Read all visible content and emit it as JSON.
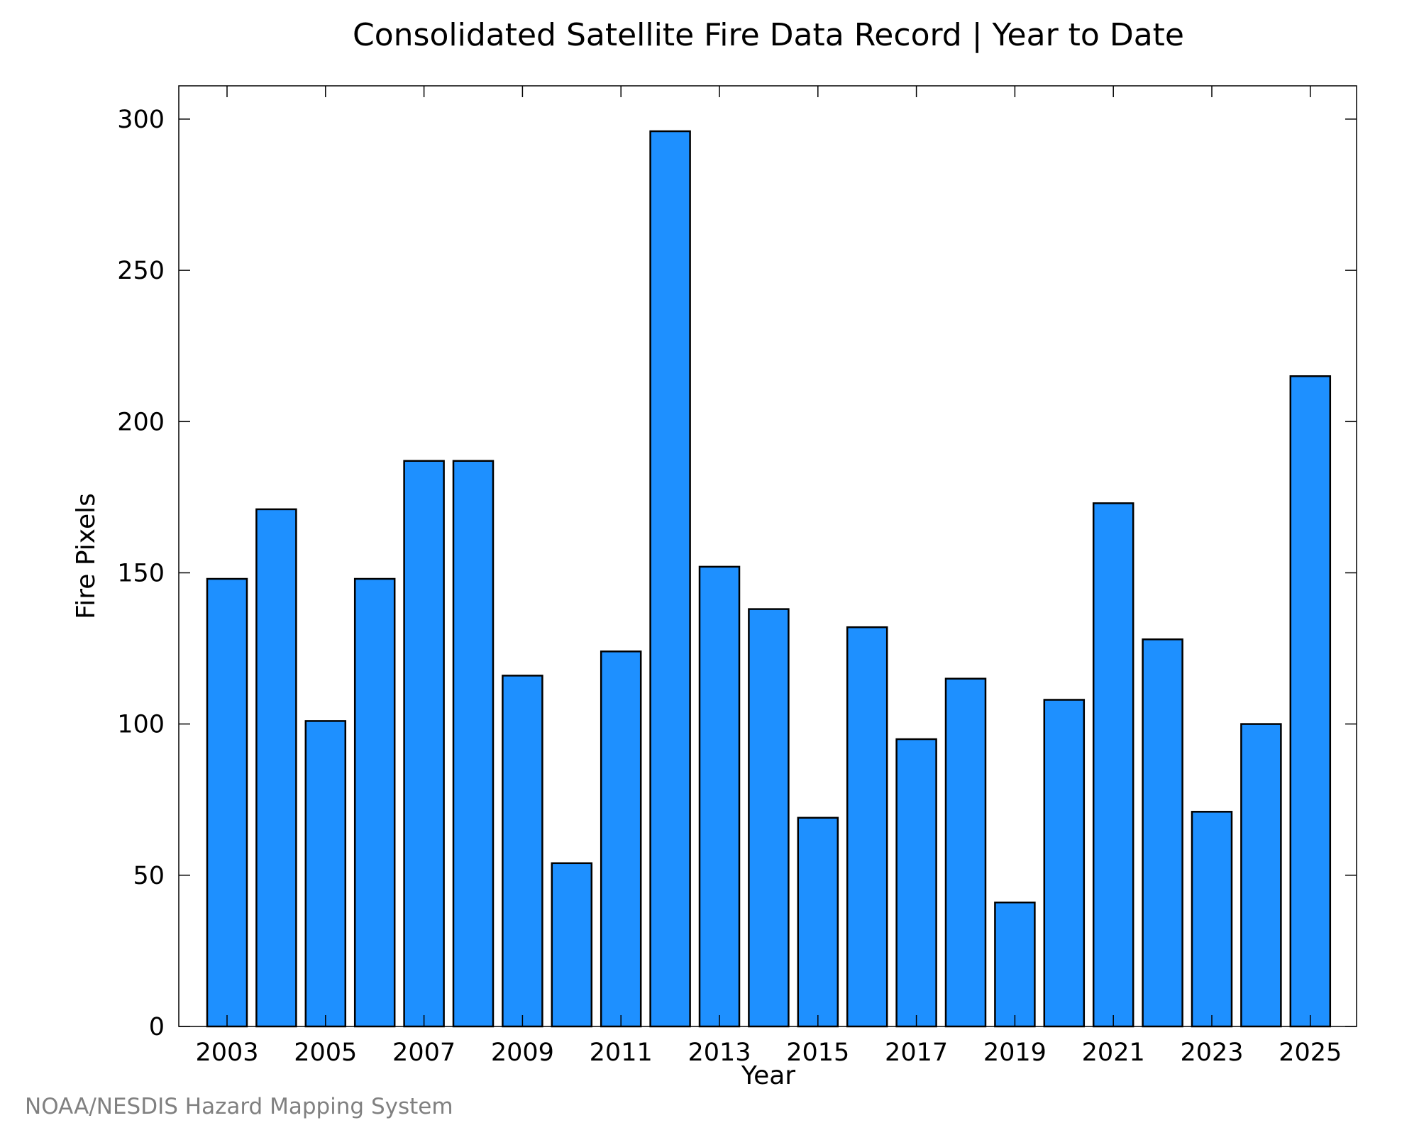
{
  "chart_data": {
    "type": "bar",
    "title": "Consolidated Satellite Fire Data Record | Year to Date",
    "xlabel": "Year",
    "ylabel": "Fire Pixels",
    "categories": [
      "2003",
      "2004",
      "2005",
      "2006",
      "2007",
      "2008",
      "2009",
      "2010",
      "2011",
      "2012",
      "2013",
      "2014",
      "2015",
      "2016",
      "2017",
      "2018",
      "2019",
      "2020",
      "2021",
      "2022",
      "2023",
      "2024",
      "2025"
    ],
    "values": [
      148,
      171,
      101,
      148,
      187,
      187,
      116,
      54,
      124,
      296,
      152,
      138,
      69,
      132,
      95,
      115,
      41,
      108,
      173,
      128,
      71,
      100,
      215
    ],
    "xtick_labels": [
      "2003",
      "2005",
      "2007",
      "2009",
      "2011",
      "2013",
      "2015",
      "2017",
      "2019",
      "2021",
      "2023",
      "2025"
    ],
    "yticks": [
      0,
      50,
      100,
      150,
      200,
      250,
      300
    ],
    "ylim": [
      0,
      311
    ],
    "grid": false,
    "legend": "none",
    "bar_color": "#1e90ff",
    "edge_color": "#000000"
  },
  "credit": "NOAA/NESDIS Hazard Mapping System"
}
